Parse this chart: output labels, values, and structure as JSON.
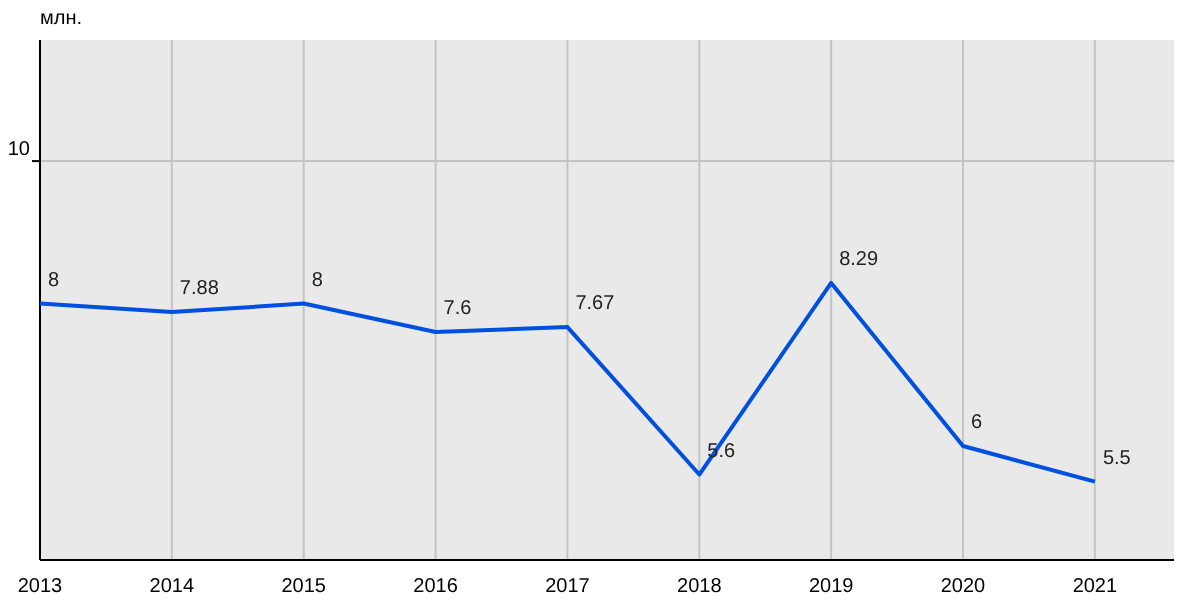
{
  "chart_data": {
    "type": "line",
    "ylabel": "млн.",
    "x": [
      2013,
      2014,
      2015,
      2016,
      2017,
      2018,
      2019,
      2020,
      2021
    ],
    "series": [
      {
        "color": "#0050e0",
        "values": [
          8,
          7.88,
          8,
          7.6,
          7.67,
          5.6,
          8.29,
          6,
          5.5
        ]
      }
    ],
    "xlim": [
      2013,
      2021.6
    ],
    "xticks": [
      2013,
      2014,
      2015,
      2016,
      2017,
      2018,
      2019,
      2020,
      2021
    ],
    "ylim": [
      4.4,
      11.7
    ],
    "ref_lines": [
      {
        "axis": "y",
        "value": 10,
        "label": "10",
        "color": "#c4c4c4"
      }
    ],
    "grid": true,
    "data_labels": true,
    "marker": "none",
    "line_style": "solid"
  }
}
